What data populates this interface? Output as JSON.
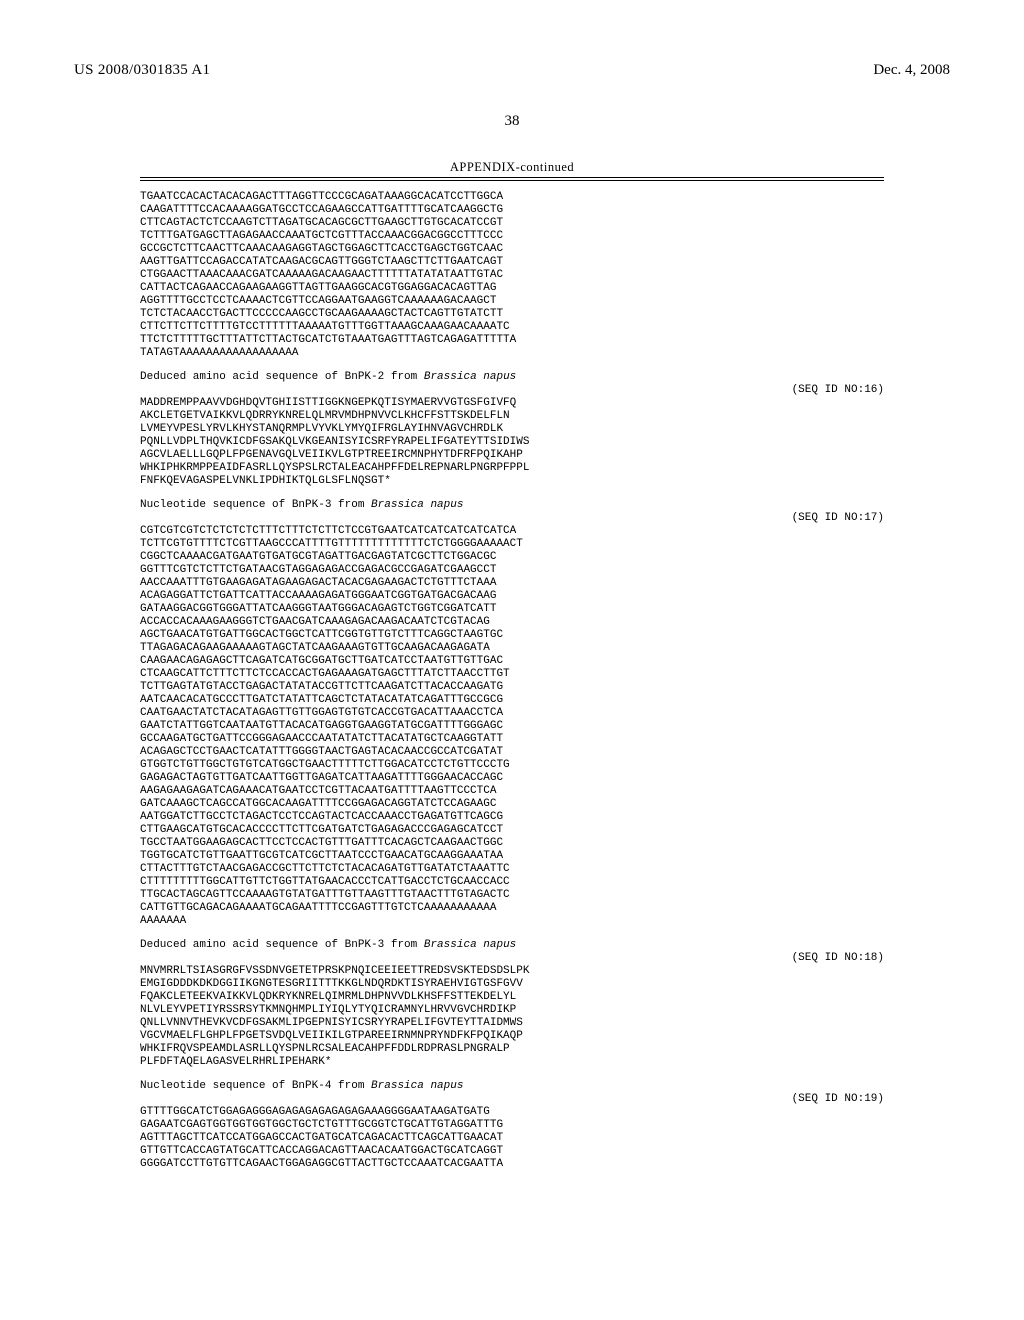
{
  "header": {
    "publication_number": "US 2008/0301835 A1",
    "date": "Dec. 4, 2008",
    "page_number": "38"
  },
  "appendix_title": "APPENDIX-continued",
  "blocks": [
    {
      "type": "seq_continuation",
      "lines": [
        "TGAATCCACACTACACAGACTTTAGGTTCCCGCAGATAAAGGCACATCCTTGGCA",
        "CAAGATTTTCCACAAAAGGATGCCTCCAGAAGCCATTGATTTTGCATCAAGGCTG",
        "CTTCAGTACTCTCCAAGTCTTAGATGCACAGCGCTTGAAGCTTGTGCACATCCGT",
        "TCTTTGATGAGCTTAGAGAACCAAATGCTCGTTTACCAAACGGACGGCCTTTCCC",
        "GCCGCTCTTCAACTTCAAACAAGAGGTAGCTGGAGCTTCACCTGAGCTGGTCAAC",
        "AAGTTGATTCCAGACCATATCAAGACGCAGTTGGGTCTAAGCTTCTTGAATCAGT",
        "CTGGAACTTAAACAAACGATCAAAAAGACAAGAACTTTTTTATATATAATTGTAC",
        "CATTACTCAGAACCAGAAGAAGGTTAGTTGAAGGCACGTGGAGGACACAGTTAG",
        "AGGTTTTGCCTCCTCAAAACTCGTTCCAGGAATGAAGGTCAAAAAAGACAAGCT",
        "TCTCTACAACCTGACTTCCCCCAAGCCTGCAAGAAAAGCTACTCAGTTGTATCTT",
        "CTTCTTCTTCTTTTGTCCTTTTTTAAAAATGTTTGGTTAAAGCAAAGAACAAAATC",
        "TTCTCTTTTTGCTTTATTCTTACTGCATCTGTAAATGAGTTTAGTCAGAGATTTTTA",
        "TATAGTAAAAAAAAAAAAAAAAAA"
      ]
    },
    {
      "type": "header_seq",
      "title_pre": "Deduced amino acid sequence of BnPK-2 from ",
      "title_ital": "Brassica napus",
      "seqid": "(SEQ ID NO:16)",
      "lines": [
        "MADDREMPPAAVVDGHDQVTGHIISTTIGGKNGEPKQTISYMAERVVGTGSFGIVFQ",
        "AKCLETGETVAIKKVLQDRRYKNRELQLMRVMDHPNVVCLKHCFFSTTSKDELFLN",
        "LVMEYVPESLYRVLKHYSTANQRMPLVYVKLYMYQIFRGLAYIHNVAGVCHRDLK",
        "PQNLLVDPLTHQVKICDFGSAKQLVKGEANISYICSRFYRAPELIFGATEYTTSIDIWS",
        "AGCVLAELLLGQPLFPGENAVGQLVEIIKVLGTPTREEIRCMNPHYTDFRFPQIKAHP",
        "WHKIPHKRMPPEAIDFASRLLQYSPSLRCTALEACAHPFFDELREPNARLPNGRPFPPL",
        "FNFKQEVAGASPELVNKLIPDHIKTQLGLSFLNQSGT*"
      ]
    },
    {
      "type": "header_seq",
      "title_pre": "Nucleotide sequence of BnPK-3 from ",
      "title_ital": "Brassica napus",
      "seqid": "(SEQ ID NO:17)",
      "lines": [
        "CGTCGTCGTCTCTCTCTCTTTCTTTCTCTTCTCCGTGAATCATCATCATCATCATCA",
        "TCTTCGTGTTTTCTCGTTAAGCCCATTTTGTTTTTTTTTTTTTCTCTGGGGAAAAACT",
        "CGGCTCAAAACGATGAATGTGATGCGTAGATTGACGAGTATCGCTTCTGGACGC",
        "GGTTTCGTCTCTTCTGATAACGTAGGAGAGACCGAGACGCCGAGATCGAAGCCT",
        "AACCAAATTTGTGAAGAGATAGAAGAGACTACACGAGAAGACTCTGTTTCTAAA",
        "ACAGAGGATTCTGATTCATTACCAAAAGAGATGGGAATCGGTGATGACGACAAG",
        "GATAAGGACGGTGGGATTATCAAGGGTAATGGGACAGAGTCTGGTCGGATCATT",
        "ACCACCACAAAGAAGGGTCTGAACGATCAAAGAGACAAGACAATCTCGTACAG",
        "AGCTGAACATGTGATTGGCACTGGCTCATTCGGTGTTGTCTTTCAGGCTAAGTGC",
        "TTAGAGACAGAAGAAAAAGTAGCTATCAAGAAAGTGTTGCAAGACAAGAGATA",
        "CAAGAACAGAGAGCTTCAGATCATGCGGATGCTTGATCATCCTAATGTTGTTGAC",
        "CTCAAGCATTCTTTCTTCTCCACCACTGAGAAAGATGAGCTTTATCTTAACCTTGT",
        "TCTTGAGTATGTACCTGAGACTATATACCGTTCTTCAAGATCTTACACCAAGATG",
        "AATCAACACATGCCCTTGATCTATATTCAGCTCTATACATATCAGATTTGCCGCG",
        "CAATGAACTATCTACATAGAGTTGTTGGAGTGTGTCACCGTGACATTAAACCTCA",
        "GAATCTATTGGTCAATAATGTTACACATGAGGTGAAGGTATGCGATTTTGGGAGC",
        "GCCAAGATGCTGATTCCGGGAGAACCCAATATATCTTACATATGCTCAAGGTATT",
        "ACAGAGCTCCTGAACTCATATTTGGGGTAACTGAGTACACAACCGCCATCGATAT",
        "GTGGTCTGTTGGCTGTGTCATGGCTGAACTTTTTCTTGGACATCCTCTGTTCCCTG",
        "GAGAGACTAGTGTTGATCAATTGGTTGAGATCATTAAGATTTTGGGAACACCAGC",
        "AAGAGAAGAGATCAGAAACATGAATCCTCGTTACAATGATTTTAAGTTCCCTCA",
        "GATCAAAGCTCAGCCATGGCACAAGATTTTCCGGAGACAGGTATCTCCAGAAGC",
        "AATGGATCTTGCCTCTAGACTCCTCCAGTACTCACCAAACCTGAGATGTTCAGCG",
        "CTTGAAGCATGTGCACACCCCTTCTTCGATGATCTGAGAGACCCGAGAGCATCCT",
        "TGCCTAATGGAAGAGCACTTCCTCCACTGTTTGATTTCACAGCTCAAGAACTGGC",
        "TGGTGCATCTGTTGAATTGCGTCATCGCTTAATCCCTGAACATGCAAGGAAATAA",
        "CTTACTTTGTCTAACGAGACCGCTTCTTCTCTACACAGATGTTGATATCTAAATTC",
        "CTTTTTTTTTGGCATTGTTCTGGTTATGAACACCCTCATTGACCTCTGCAACCACC",
        "TTGCACTAGCAGTTCCAAAAGTGTATGATTTGTTAAGTTTGTAACTTTGTAGACTC",
        "CATTGTTGCAGACAGAAAATGCAGAATTTTCCGAGTTTGTCTCAAAAAAAAAAA",
        "AAAAAAA"
      ]
    },
    {
      "type": "header_seq",
      "title_pre": "Deduced amino acid sequence of BnPK-3 from ",
      "title_ital": "Brassica napus",
      "seqid": "(SEQ ID NO:18)",
      "lines": [
        "MNVMRRLTSIASGRGFVSSDNVGETETPRSKPNQICEEIEETTREDSVSKTEDSDSLPK",
        "EMGIGDDDKDKDGGIIKGNGTESGRIITTTKKGLNDQRDKTISYRAEHVIGTGSFGVV",
        "FQAKCLETEEKVAIKKVLQDKRYKNRELQIMRMLDHPNVVDLKHSFFSTTEKDELYL",
        "NLVLEYVPETIYRSSRSYTKMNQHMPLIYIQLYTYQICRAMNYLHRVVGVCHRDIKP",
        "QNLLVNNVTHEVKVCDFGSAKMLIPGEPNISYICSRYYRAPELIFGVTEYTTAIDMWS",
        "VGCVMAELFLGHPLFPGETSVDQLVEIIKILGTPAREEIRNMNPRYNDFKFPQIKAQP",
        "WHKIFRQVSPEAMDLASRLLQYSPNLRCSALEACAHPFFDDLRDPRASLPNGRALP",
        "PLFDFTAQELAGASVELRHRLIPEHARK*"
      ]
    },
    {
      "type": "header_seq",
      "title_pre": "Nucleotide sequence of BnPK-4 from ",
      "title_ital": "Brassica napus",
      "seqid": "(SEQ ID NO:19)",
      "lines": [
        "GTTTTGGCATCTGGAGAGGGAGAGAGAGAGAGAGAAAGGGGAATAAGATGATG",
        "GAGAATCGAGTGGTGGTGGTGGCTGCTCTGTTTGCGGTCTGCATTGTAGGATTTG",
        "AGTTTAGCTTCATCCATGGAGCCACTGATGCATCAGACACTTCAGCATTGAACAT",
        "GTTGTTCACCAGTATGCATTCACCAGGACAGTTAACACAATGGACTGCATCAGGT",
        "GGGGATCCTTGTGTTCAGAACTGGAGAGGCGTTACTTGCTCCAAATCACGAATTA"
      ]
    }
  ]
}
